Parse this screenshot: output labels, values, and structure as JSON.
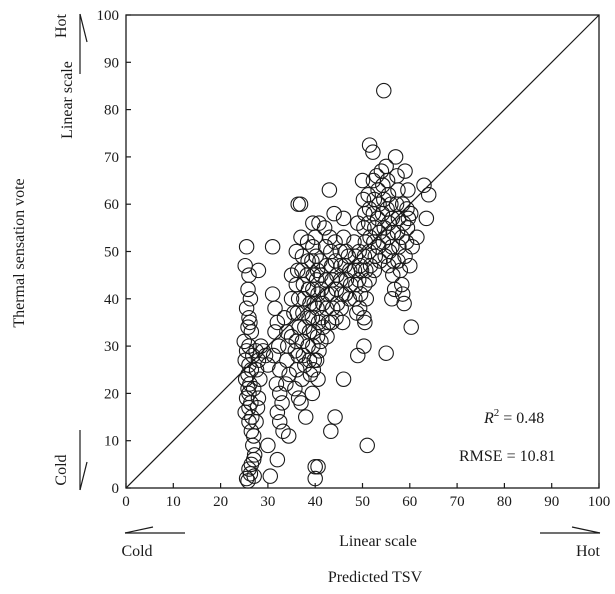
{
  "chart_data": {
    "type": "scatter",
    "xlabel": "Predicted TSV",
    "ylabel": "Thermal sensation vote",
    "x_scale_label": "Linear scale",
    "y_scale_label": "Linear scale",
    "x_cold_label": "Cold",
    "x_hot_label": "Hot",
    "y_cold_label": "Cold",
    "y_hot_label": "Hot",
    "xlim": [
      0,
      100
    ],
    "ylim": [
      0,
      100
    ],
    "x_ticks": [
      0,
      10,
      20,
      30,
      40,
      50,
      60,
      70,
      80,
      90,
      100
    ],
    "y_ticks": [
      0,
      10,
      20,
      30,
      40,
      50,
      60,
      70,
      80,
      90,
      100
    ],
    "reference_line": "y = x",
    "grid": false,
    "annotation": {
      "r2_prefix": "R",
      "r2_sup": "2",
      "r2_value": " = 0.48",
      "rmse": "RMSE = 10.81"
    },
    "marker": "open circle",
    "points": [
      [
        25.5,
        51
      ],
      [
        25.2,
        47
      ],
      [
        26,
        45
      ],
      [
        25.8,
        42
      ],
      [
        26.3,
        40
      ],
      [
        25.5,
        38
      ],
      [
        26,
        36
      ],
      [
        26.2,
        35
      ],
      [
        25.8,
        34
      ],
      [
        26.5,
        33
      ],
      [
        25,
        31
      ],
      [
        26,
        30
      ],
      [
        25.5,
        29
      ],
      [
        26.8,
        28
      ],
      [
        25.2,
        27
      ],
      [
        26,
        26
      ],
      [
        26.5,
        25
      ],
      [
        25.8,
        24
      ],
      [
        25.3,
        23
      ],
      [
        26.2,
        22
      ],
      [
        25.8,
        21
      ],
      [
        26,
        20
      ],
      [
        25.5,
        19
      ],
      [
        26.4,
        18
      ],
      [
        26,
        17
      ],
      [
        25.2,
        16
      ],
      [
        26.6,
        15
      ],
      [
        26,
        14
      ],
      [
        26.5,
        12
      ],
      [
        27,
        11
      ],
      [
        26.8,
        9
      ],
      [
        27.2,
        7
      ],
      [
        27,
        6
      ],
      [
        26.5,
        5
      ],
      [
        26,
        4
      ],
      [
        26.3,
        3
      ],
      [
        27.1,
        2.5
      ],
      [
        25.8,
        1.5
      ],
      [
        25.5,
        2
      ],
      [
        28,
        46
      ],
      [
        28.5,
        30
      ],
      [
        27.5,
        29
      ],
      [
        28,
        27
      ],
      [
        27.6,
        25
      ],
      [
        28.3,
        23
      ],
      [
        27,
        21
      ],
      [
        28,
        19
      ],
      [
        27.8,
        17
      ],
      [
        27.5,
        14
      ],
      [
        29,
        29
      ],
      [
        29.5,
        28
      ],
      [
        30,
        26
      ],
      [
        31,
        51
      ],
      [
        31,
        41
      ],
      [
        31.5,
        38
      ],
      [
        32,
        35
      ],
      [
        31.5,
        33
      ],
      [
        32.3,
        30
      ],
      [
        31.2,
        28
      ],
      [
        32.5,
        25
      ],
      [
        31.8,
        22
      ],
      [
        32.5,
        20
      ],
      [
        33,
        18
      ],
      [
        32,
        16
      ],
      [
        32.5,
        14
      ],
      [
        33.2,
        12
      ],
      [
        32,
        6
      ],
      [
        30.5,
        2.5
      ],
      [
        30,
        9
      ],
      [
        33.5,
        36
      ],
      [
        34,
        33
      ],
      [
        34.2,
        30
      ],
      [
        34,
        27
      ],
      [
        34.5,
        24
      ],
      [
        33.8,
        22
      ],
      [
        34.4,
        11
      ],
      [
        35,
        45
      ],
      [
        35,
        40
      ],
      [
        35.5,
        37
      ],
      [
        35,
        32
      ],
      [
        35.8,
        29
      ],
      [
        36,
        50
      ],
      [
        36.3,
        46
      ],
      [
        36,
        43
      ],
      [
        36.5,
        40
      ],
      [
        36.2,
        37
      ],
      [
        36.6,
        34
      ],
      [
        36,
        31
      ],
      [
        36.4,
        28
      ],
      [
        36.1,
        25
      ],
      [
        35.7,
        21
      ],
      [
        36.5,
        19
      ],
      [
        36.4,
        60
      ],
      [
        36.9,
        60
      ],
      [
        37,
        53
      ],
      [
        37.3,
        49
      ],
      [
        37.2,
        46
      ],
      [
        37.5,
        43
      ],
      [
        37.6,
        40
      ],
      [
        37.4,
        37
      ],
      [
        37.8,
        34
      ],
      [
        37.3,
        31
      ],
      [
        37.5,
        28
      ],
      [
        37.8,
        26
      ],
      [
        37.2,
        23
      ],
      [
        37,
        18
      ],
      [
        38,
        15
      ],
      [
        38.4,
        52
      ],
      [
        38.5,
        48
      ],
      [
        38.3,
        45
      ],
      [
        38.6,
        42
      ],
      [
        38.9,
        39
      ],
      [
        38.7,
        36
      ],
      [
        38.8,
        33
      ],
      [
        38.5,
        30
      ],
      [
        38.8,
        27
      ],
      [
        39,
        24
      ],
      [
        39.5,
        56
      ],
      [
        39.5,
        51
      ],
      [
        39.3,
        48
      ],
      [
        39.6,
        45
      ],
      [
        39.5,
        42
      ],
      [
        39.8,
        39
      ],
      [
        39.4,
        36
      ],
      [
        39.7,
        33
      ],
      [
        39.5,
        30
      ],
      [
        39.8,
        27
      ],
      [
        39.6,
        25
      ],
      [
        39.4,
        20
      ],
      [
        40,
        53
      ],
      [
        40.2,
        49
      ],
      [
        40.5,
        46
      ],
      [
        40.3,
        44
      ],
      [
        40.6,
        41
      ],
      [
        40.4,
        38
      ],
      [
        40.7,
        35
      ],
      [
        40.5,
        32
      ],
      [
        40.8,
        29
      ],
      [
        40.3,
        27
      ],
      [
        40.6,
        23
      ],
      [
        40,
        4.5
      ],
      [
        40.6,
        4.5
      ],
      [
        40,
        2
      ],
      [
        40.8,
        56
      ],
      [
        41,
        48
      ],
      [
        41.2,
        45
      ],
      [
        41.3,
        42
      ],
      [
        41.6,
        39
      ],
      [
        41.4,
        36
      ],
      [
        41.7,
        34
      ],
      [
        41.2,
        31
      ],
      [
        42,
        55
      ],
      [
        42.2,
        51
      ],
      [
        42.4,
        47
      ],
      [
        42.3,
        44
      ],
      [
        42.6,
        41
      ],
      [
        42.4,
        38
      ],
      [
        42.8,
        35
      ],
      [
        42.5,
        32
      ],
      [
        43,
        63
      ],
      [
        43.1,
        53
      ],
      [
        43.3,
        50
      ],
      [
        43.5,
        47
      ],
      [
        43.6,
        44
      ],
      [
        43.4,
        41
      ],
      [
        43.7,
        38
      ],
      [
        43.5,
        35
      ],
      [
        43.3,
        12
      ],
      [
        44,
        58
      ],
      [
        44.2,
        52
      ],
      [
        44.3,
        48
      ],
      [
        44.6,
        45
      ],
      [
        44.5,
        42
      ],
      [
        44.7,
        39
      ],
      [
        44.4,
        36
      ],
      [
        44.2,
        15
      ],
      [
        45.3,
        50
      ],
      [
        45.5,
        47
      ],
      [
        45.4,
        44
      ],
      [
        45.7,
        41
      ],
      [
        45.5,
        38
      ],
      [
        45.8,
        35
      ],
      [
        46,
        57
      ],
      [
        46,
        53
      ],
      [
        46.5,
        50
      ],
      [
        46.3,
        47
      ],
      [
        46.6,
        44
      ],
      [
        46.4,
        41
      ],
      [
        46,
        23
      ],
      [
        47,
        49
      ],
      [
        47.3,
        46
      ],
      [
        47.5,
        43
      ],
      [
        47.2,
        40
      ],
      [
        48.2,
        52
      ],
      [
        48.5,
        49
      ],
      [
        48.3,
        46
      ],
      [
        48.6,
        43
      ],
      [
        48.4,
        40
      ],
      [
        48.8,
        37
      ],
      [
        49,
        56
      ],
      [
        49.3,
        50
      ],
      [
        49.5,
        47
      ],
      [
        49.2,
        44
      ],
      [
        49.6,
        41
      ],
      [
        49.4,
        38
      ],
      [
        49,
        28
      ],
      [
        49.8,
        46
      ],
      [
        50,
        65
      ],
      [
        50.2,
        61
      ],
      [
        50.5,
        58
      ],
      [
        50.3,
        55
      ],
      [
        50.6,
        52
      ],
      [
        50.4,
        49
      ],
      [
        50.7,
        46
      ],
      [
        50.5,
        43
      ],
      [
        50.8,
        40
      ],
      [
        50.3,
        36
      ],
      [
        50.5,
        35
      ],
      [
        50.3,
        30
      ],
      [
        51.5,
        72.5
      ],
      [
        51.2,
        62
      ],
      [
        51.5,
        59
      ],
      [
        51.3,
        56
      ],
      [
        51.6,
        53
      ],
      [
        51.4,
        50
      ],
      [
        51.7,
        47
      ],
      [
        51.4,
        44
      ],
      [
        51,
        9
      ],
      [
        52.2,
        71
      ],
      [
        52.3,
        65
      ],
      [
        52.5,
        61
      ],
      [
        52.3,
        58
      ],
      [
        52.6,
        55
      ],
      [
        52.4,
        52
      ],
      [
        52.7,
        49
      ],
      [
        52.5,
        46
      ],
      [
        53,
        66
      ],
      [
        53.3,
        63
      ],
      [
        53.5,
        60
      ],
      [
        53.2,
        57
      ],
      [
        53.6,
        54
      ],
      [
        53.4,
        51
      ],
      [
        53.7,
        48
      ],
      [
        54.5,
        84
      ],
      [
        54,
        67
      ],
      [
        54.3,
        64
      ],
      [
        54.5,
        61
      ],
      [
        54.2,
        58
      ],
      [
        54.6,
        55
      ],
      [
        54.4,
        52
      ],
      [
        54.8,
        49
      ],
      [
        55,
        68
      ],
      [
        55.3,
        65
      ],
      [
        55.5,
        62
      ],
      [
        55.2,
        59
      ],
      [
        55.6,
        56
      ],
      [
        55.4,
        53
      ],
      [
        55.7,
        50
      ],
      [
        55.5,
        47
      ],
      [
        55,
        28.5
      ],
      [
        56,
        60
      ],
      [
        56.3,
        57
      ],
      [
        56.5,
        54
      ],
      [
        56.2,
        51
      ],
      [
        56.6,
        48
      ],
      [
        56.4,
        45
      ],
      [
        56.8,
        42
      ],
      [
        56.2,
        40
      ],
      [
        57,
        70
      ],
      [
        57.3,
        66
      ],
      [
        57.5,
        63
      ],
      [
        57.2,
        60
      ],
      [
        57.6,
        57
      ],
      [
        57.4,
        54
      ],
      [
        57.7,
        51
      ],
      [
        57.5,
        48
      ],
      [
        58,
        46
      ],
      [
        58.3,
        43
      ],
      [
        58.5,
        41
      ],
      [
        58.8,
        39
      ],
      [
        58.5,
        60
      ],
      [
        58.7,
        56
      ],
      [
        58.3,
        53
      ],
      [
        59,
        49
      ],
      [
        59.3,
        52
      ],
      [
        59.5,
        55
      ],
      [
        59,
        67
      ],
      [
        59.6,
        63
      ],
      [
        59.4,
        59
      ],
      [
        59.7,
        57
      ],
      [
        60,
        47
      ],
      [
        60.3,
        34
      ],
      [
        60.5,
        51
      ],
      [
        60.2,
        58
      ],
      [
        61.5,
        53
      ],
      [
        63,
        64
      ],
      [
        63.5,
        57
      ],
      [
        64,
        62
      ]
    ]
  }
}
